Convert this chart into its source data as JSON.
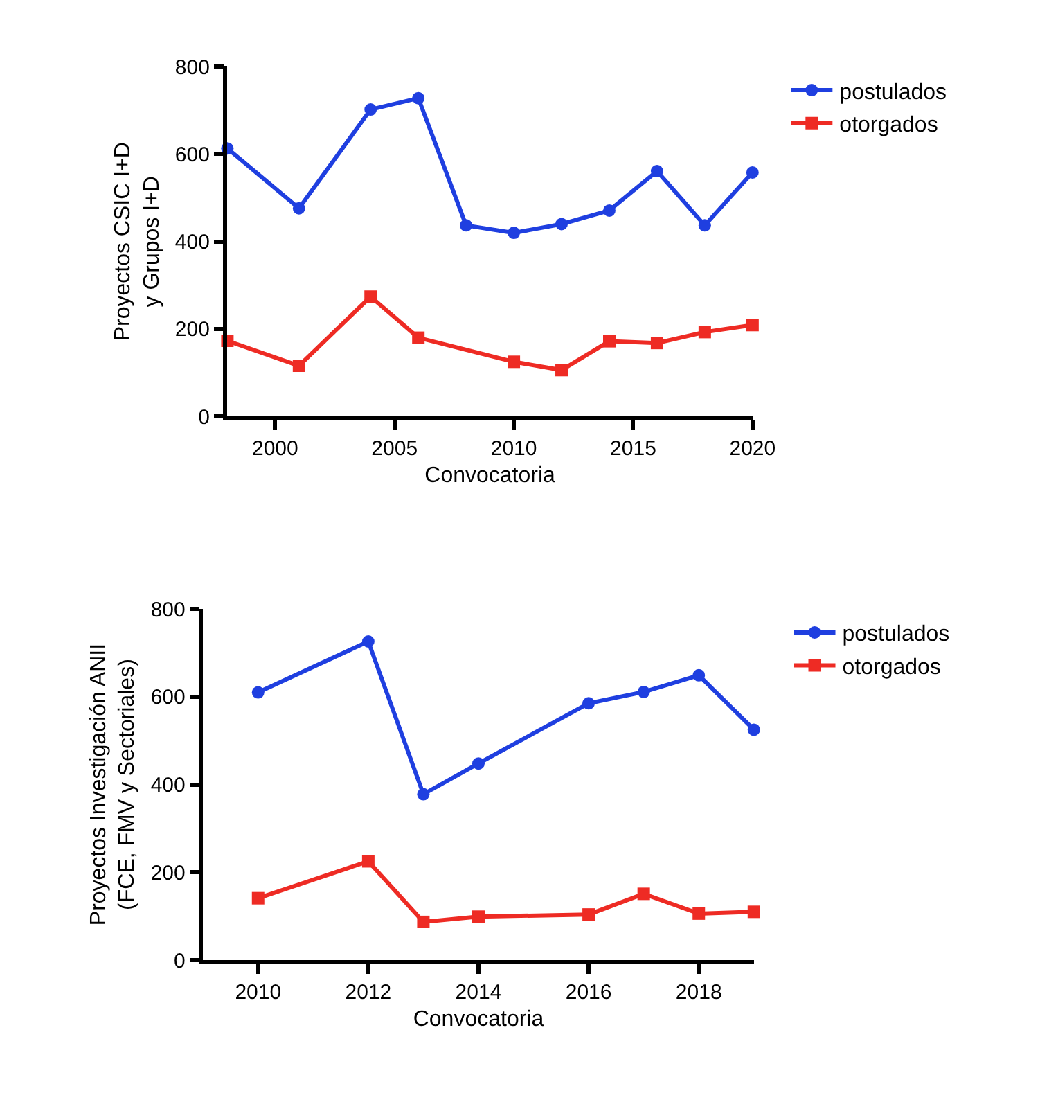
{
  "chart_data": [
    {
      "type": "line",
      "xlabel": "Convocatoria",
      "ylabel": "Proyectos CSIC I+D\ny Grupos I+D",
      "xlim": [
        1998,
        2020
      ],
      "xticks": [
        2000,
        2005,
        2010,
        2015,
        2020
      ],
      "ylim": [
        0,
        800
      ],
      "yticks": [
        0,
        200,
        400,
        600,
        800
      ],
      "legend": "top right",
      "series": [
        {
          "name": "postulados",
          "color": "#1f3fe0",
          "marker": "circle",
          "x": [
            1998,
            2001,
            2004,
            2006,
            2008,
            2010,
            2012,
            2014,
            2016,
            2018,
            2020
          ],
          "values": [
            613,
            476,
            702,
            728,
            437,
            420,
            440,
            471,
            561,
            437,
            558
          ]
        },
        {
          "name": "otorgados",
          "color": "#ee2b24",
          "marker": "square",
          "x": [
            1998,
            2001,
            2004,
            2006,
            2010,
            2012,
            2014,
            2016,
            2018,
            2020
          ],
          "values": [
            173,
            116,
            274,
            180,
            125,
            106,
            172,
            168,
            193,
            209
          ]
        }
      ]
    },
    {
      "type": "line",
      "xlabel": "Convocatoria",
      "ylabel": "Proyectos Investigación ANII\n(FCE, FMV y Sectoriales)",
      "xlim": [
        2009,
        2019
      ],
      "xticks": [
        2010,
        2012,
        2014,
        2016,
        2018
      ],
      "ylim": [
        0,
        800
      ],
      "yticks": [
        0,
        200,
        400,
        600,
        800
      ],
      "legend": "top right",
      "series": [
        {
          "name": "postulados",
          "color": "#1f3fe0",
          "marker": "circle",
          "x": [
            2010,
            2012,
            2013,
            2014,
            2016,
            2017,
            2018,
            2019
          ],
          "values": [
            610,
            726,
            378,
            448,
            585,
            611,
            649,
            525
          ]
        },
        {
          "name": "otorgados",
          "color": "#ee2b24",
          "marker": "square",
          "x": [
            2010,
            2012,
            2013,
            2014,
            2016,
            2017,
            2018,
            2019
          ],
          "values": [
            141,
            225,
            87,
            99,
            104,
            151,
            106,
            110
          ]
        }
      ]
    }
  ]
}
